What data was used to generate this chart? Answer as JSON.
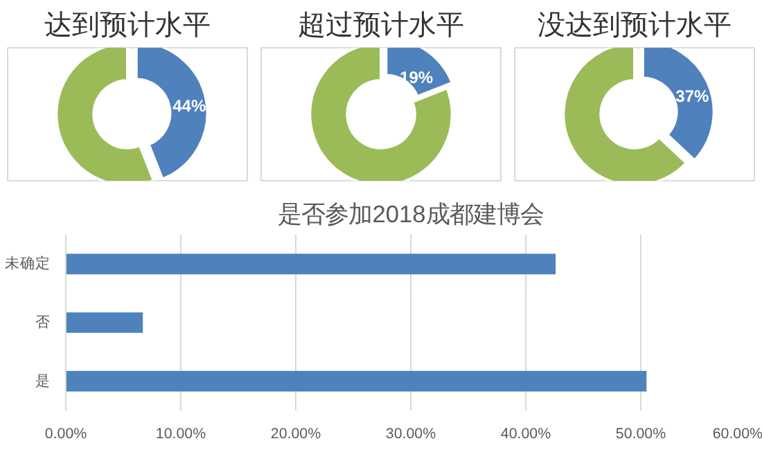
{
  "chart_data": [
    {
      "type": "donut",
      "title": "达到预计水平",
      "categories": [
        null,
        null
      ],
      "values": [
        44,
        56
      ],
      "colors": [
        "#4f81bd",
        "#9bbb59"
      ],
      "value_labels": [
        "44%",
        null
      ]
    },
    {
      "type": "donut",
      "title": "超过预计水平",
      "categories": [
        null,
        null
      ],
      "values": [
        19,
        81
      ],
      "colors": [
        "#4f81bd",
        "#9bbb59"
      ],
      "value_labels": [
        "19%",
        null
      ]
    },
    {
      "type": "donut",
      "title": "没达到预计水平",
      "categories": [
        null,
        null
      ],
      "values": [
        37,
        63
      ],
      "colors": [
        "#4f81bd",
        "#9bbb59"
      ],
      "value_labels": [
        "37%",
        null
      ]
    },
    {
      "type": "bar",
      "orientation": "horizontal",
      "title": "是否参加2018成都建博会",
      "categories": [
        "未确定",
        "否",
        "是"
      ],
      "values": [
        42.6,
        6.7,
        50.5
      ],
      "color": "#4f81bd",
      "xlim": [
        0,
        60
      ],
      "xticks": [
        {
          "value": 0,
          "label": "0.00%"
        },
        {
          "value": 10,
          "label": "10.00%"
        },
        {
          "value": 20,
          "label": "20.00%"
        },
        {
          "value": 30,
          "label": "30.00%"
        },
        {
          "value": 40,
          "label": "40.00%"
        },
        {
          "value": 50,
          "label": "50.00%"
        },
        {
          "value": 60,
          "label": "60.00%"
        }
      ],
      "grid": "x"
    }
  ]
}
